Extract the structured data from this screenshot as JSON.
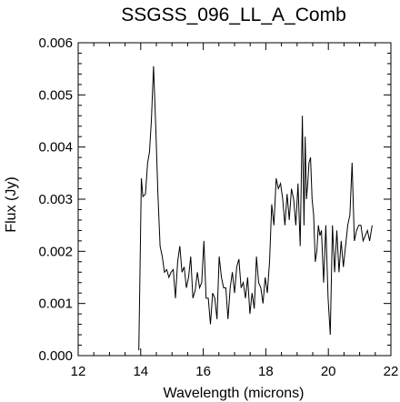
{
  "chart_data": {
    "type": "line",
    "title": "SSGSS_096_LL_A_Comb",
    "xlabel": "Wavelength (microns)",
    "ylabel": "Flux (Jy)",
    "xlim": [
      12,
      22
    ],
    "ylim": [
      0,
      0.006
    ],
    "xticks": [
      12,
      14,
      16,
      18,
      20,
      22
    ],
    "xtick_labels": [
      "12",
      "14",
      "16",
      "18",
      "20",
      "22"
    ],
    "yticks": [
      0,
      0.001,
      0.002,
      0.003,
      0.004,
      0.005,
      0.006
    ],
    "ytick_labels": [
      "0.000",
      "0.001",
      "0.002",
      "0.003",
      "0.004",
      "0.005",
      "0.006"
    ],
    "grid": false,
    "series": [
      {
        "color": "#000000",
        "x": [
          13.94,
          14.02,
          14.07,
          14.15,
          14.22,
          14.28,
          14.34,
          14.41,
          14.48,
          14.55,
          14.62,
          14.69,
          14.76,
          14.83,
          14.9,
          14.97,
          15.04,
          15.11,
          15.18,
          15.25,
          15.32,
          15.39,
          15.46,
          15.53,
          15.6,
          15.67,
          15.74,
          15.81,
          15.88,
          15.95,
          16.02,
          16.09,
          16.16,
          16.23,
          16.3,
          16.37,
          16.44,
          16.51,
          16.58,
          16.65,
          16.72,
          16.79,
          16.86,
          16.93,
          17.0,
          17.07,
          17.14,
          17.21,
          17.28,
          17.35,
          17.42,
          17.49,
          17.56,
          17.63,
          17.7,
          17.77,
          17.84,
          17.91,
          17.98,
          18.05,
          18.12,
          18.19,
          18.26,
          18.33,
          18.4,
          18.47,
          18.54,
          18.61,
          18.68,
          18.75,
          18.82,
          18.89,
          18.96,
          19.03,
          19.1,
          19.17,
          19.22,
          19.26,
          19.3,
          19.34,
          19.38,
          19.43,
          19.48,
          19.53,
          19.58,
          19.63,
          19.68,
          19.73,
          19.78,
          19.85,
          19.92,
          19.99,
          20.06,
          20.13,
          20.2,
          20.27,
          20.34,
          20.41,
          20.48,
          20.55,
          20.62,
          20.69,
          20.76,
          20.83,
          20.9,
          20.97,
          21.04,
          21.11,
          21.18,
          21.25,
          21.32,
          21.4
        ],
        "y": [
          0.0001,
          0.0034,
          0.00305,
          0.0031,
          0.0037,
          0.0039,
          0.0045,
          0.00555,
          0.0044,
          0.0031,
          0.0021,
          0.0019,
          0.0016,
          0.00165,
          0.0015,
          0.0016,
          0.00165,
          0.0011,
          0.0018,
          0.0021,
          0.0016,
          0.0017,
          0.0013,
          0.0015,
          0.0019,
          0.0011,
          0.00125,
          0.0016,
          0.0013,
          0.0014,
          0.0022,
          0.0011,
          0.0011,
          0.0006,
          0.0012,
          0.0011,
          0.0007,
          0.0019,
          0.0015,
          0.0013,
          0.0013,
          0.0007,
          0.0013,
          0.0016,
          0.0012,
          0.0017,
          0.00185,
          0.0013,
          0.0014,
          0.0011,
          0.0015,
          0.0008,
          0.0012,
          0.0009,
          0.0019,
          0.0014,
          0.0013,
          0.001,
          0.0015,
          0.0012,
          0.0018,
          0.0029,
          0.0025,
          0.0034,
          0.0032,
          0.0033,
          0.003,
          0.0025,
          0.0031,
          0.0026,
          0.0032,
          0.003,
          0.0025,
          0.0033,
          0.0021,
          0.0046,
          0.0025,
          0.0042,
          0.003,
          0.0033,
          0.0037,
          0.0038,
          0.003,
          0.0027,
          0.0018,
          0.002,
          0.0025,
          0.0023,
          0.0024,
          0.0014,
          0.0025,
          0.0011,
          0.0004,
          0.0025,
          0.0016,
          0.0024,
          0.0016,
          0.0022,
          0.0017,
          0.0021,
          0.0025,
          0.0027,
          0.0037,
          0.0022,
          0.0024,
          0.0025,
          0.0025,
          0.0022,
          0.0023,
          0.0024,
          0.0022,
          0.0025
        ]
      }
    ]
  }
}
